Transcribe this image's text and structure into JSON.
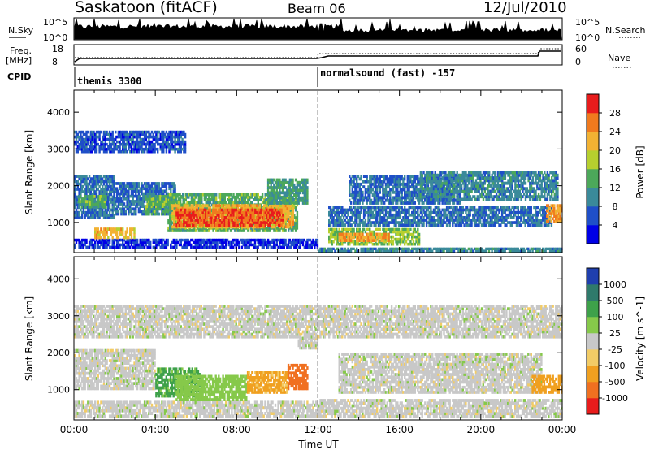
{
  "header": {
    "station": "Saskatoon (fitACF)",
    "beam": "Beam 06",
    "date": "12/Jul/2010"
  },
  "top_panels": {
    "nsky_label": "N.Sky",
    "nsearch_label": "N.Search",
    "nsky_ticks": [
      "10^5",
      "10^0"
    ],
    "nsearch_ticks": [
      "10^5",
      "10^0"
    ],
    "freq_label_1": "Freq.",
    "freq_label_2": "[MHz]",
    "freq_ticks": [
      "18",
      "8"
    ],
    "nave_ticks": [
      "60",
      "0"
    ],
    "nave_label": "Nave",
    "cpid_label": "CPID",
    "cpid_1": "themis 3300",
    "cpid_2": "normalsound (fast) -157"
  },
  "chart_data": [
    {
      "type": "heatmap",
      "name": "power-panel",
      "ylabel": "Slant Range [km]",
      "ylim": [
        180,
        4600
      ],
      "yticks": [
        "4000",
        "3000",
        "2000",
        "1000"
      ],
      "xlim": [
        0,
        24
      ],
      "colorbar_label": "Power [dB]",
      "colorbar_ticks": [
        "28",
        "24",
        "20",
        "16",
        "12",
        "8",
        "4"
      ],
      "colors": [
        "#0000e6",
        "#1f4fc8",
        "#3a8a9a",
        "#4ca85a",
        "#b6cf2e",
        "#f2b233",
        "#f07a1e",
        "#e81c1c"
      ],
      "bands": [
        {
          "t0": 0.0,
          "t1": 12.0,
          "r0": 300,
          "r1": 560,
          "value": 4
        },
        {
          "t0": 0.0,
          "t1": 2.0,
          "r0": 1100,
          "r1": 2300,
          "value": 8
        },
        {
          "t0": 0.2,
          "t1": 1.6,
          "r0": 1400,
          "r1": 1750,
          "value": 14
        },
        {
          "t0": 2.0,
          "t1": 5.0,
          "r0": 1200,
          "r1": 2100,
          "value": 8
        },
        {
          "t0": 3.5,
          "t1": 5.4,
          "r0": 1200,
          "r1": 1750,
          "value": 14
        },
        {
          "t0": 4.6,
          "t1": 11.0,
          "r0": 750,
          "r1": 1800,
          "value": 14
        },
        {
          "t0": 4.8,
          "t1": 10.8,
          "r0": 850,
          "r1": 1500,
          "value": 22
        },
        {
          "t0": 5.0,
          "t1": 10.3,
          "r0": 900,
          "r1": 1380,
          "value": 28
        },
        {
          "t0": 1.0,
          "t1": 3.0,
          "r0": 560,
          "r1": 860,
          "value": 22
        },
        {
          "t0": 9.5,
          "t1": 11.5,
          "r0": 1500,
          "r1": 2200,
          "value": 12
        },
        {
          "t0": 0.0,
          "t1": 5.5,
          "r0": 2900,
          "r1": 3500,
          "value": 6
        },
        {
          "t0": 12.5,
          "t1": 17.0,
          "r0": 380,
          "r1": 850,
          "value": 16
        },
        {
          "t0": 13.0,
          "t1": 15.5,
          "r0": 480,
          "r1": 720,
          "value": 24
        },
        {
          "t0": 12.5,
          "t1": 23.5,
          "r0": 900,
          "r1": 1450,
          "value": 8
        },
        {
          "t0": 13.5,
          "t1": 19.0,
          "r0": 1500,
          "r1": 2300,
          "value": 8
        },
        {
          "t0": 17.0,
          "t1": 23.8,
          "r0": 1600,
          "r1": 2400,
          "value": 10
        },
        {
          "t0": 23.2,
          "t1": 24.0,
          "r0": 1000,
          "r1": 1500,
          "value": 24
        },
        {
          "t0": 12.0,
          "t1": 24.0,
          "r0": 200,
          "r1": 320,
          "value": 10
        }
      ]
    },
    {
      "type": "heatmap",
      "name": "velocity-panel",
      "ylabel": "Slant Range [km]",
      "ylim": [
        180,
        4600
      ],
      "yticks": [
        "4000",
        "3000",
        "2000",
        "1000"
      ],
      "xlim": [
        0,
        24
      ],
      "xticks": [
        "00:00",
        "04:00",
        "08:00",
        "12:00",
        "16:00",
        "20:00",
        "00:00"
      ],
      "xlabel": "Time UT",
      "colorbar_label": "Velocity [m s^-1]",
      "colorbar_ticks": [
        "1000",
        "500",
        "100",
        "25",
        "-25",
        "-100",
        "-500",
        "-1000"
      ],
      "colors": [
        "#1f3fae",
        "#2f7a6b",
        "#3ea14a",
        "#86c94a",
        "#c8c8c8",
        "#f2cc66",
        "#f0a020",
        "#f07020",
        "#e81c1c"
      ],
      "bands": [
        {
          "t0": 0.0,
          "t1": 12.0,
          "r0": 250,
          "r1": 700,
          "value": 0
        },
        {
          "t0": 0.0,
          "t1": 4.0,
          "r0": 1000,
          "r1": 2100,
          "value": 0
        },
        {
          "t0": 4.0,
          "t1": 6.2,
          "r0": 800,
          "r1": 1600,
          "value": 120
        },
        {
          "t0": 5.0,
          "t1": 8.5,
          "r0": 700,
          "r1": 1400,
          "value": 60
        },
        {
          "t0": 8.5,
          "t1": 10.5,
          "r0": 900,
          "r1": 1500,
          "value": -120
        },
        {
          "t0": 10.5,
          "t1": 11.5,
          "r0": 1000,
          "r1": 1700,
          "value": -550
        },
        {
          "t0": 11.0,
          "t1": 12.0,
          "r0": 2100,
          "r1": 2500,
          "value": 0
        },
        {
          "t0": 12.0,
          "t1": 24.0,
          "r0": 250,
          "r1": 750,
          "value": 0
        },
        {
          "t0": 13.0,
          "t1": 23.0,
          "r0": 900,
          "r1": 2000,
          "value": 0
        },
        {
          "t0": 22.5,
          "t1": 24.0,
          "r0": 900,
          "r1": 1400,
          "value": -150
        },
        {
          "t0": 0.0,
          "t1": 24.0,
          "r0": 2400,
          "r1": 3300,
          "value": 0
        }
      ]
    }
  ]
}
